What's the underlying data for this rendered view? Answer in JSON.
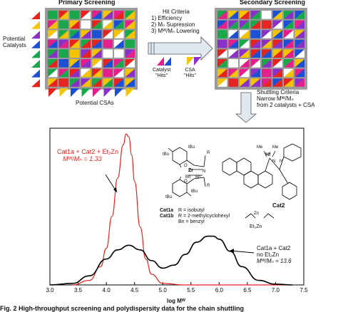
{
  "screening": {
    "primary_title": "Primary Screening",
    "secondary_title": "Secondary Screening",
    "potential_catalysts_label": [
      "Potential",
      "Catalysts"
    ],
    "potential_csas_label": "Potential CSAs",
    "hit_criteria": {
      "title": "Hit Criteria",
      "items": [
        "1) Efficiency",
        "2) Mₙ Supression",
        "3) Mᵂ/Mₙ Lowering"
      ]
    },
    "hits": {
      "catalyst": [
        "Catalyst",
        "\"Hits\""
      ],
      "csa": [
        "CSA",
        "\"Hits\""
      ]
    },
    "shuttling": {
      "title": "Shuttling Criteria",
      "line2": "Narrow Mᵂ/Mₙ",
      "line3": "from 2 catalysts + CSA"
    },
    "palette": [
      "#e8231f",
      "#f5c400",
      "#1a4fd6",
      "#18a84a",
      "#e61e8c",
      "#8b2fc9",
      "#ffffff"
    ]
  },
  "chart_data": {
    "type": "line",
    "xlabel": "log Mᵂ",
    "xlim": [
      3.0,
      7.5
    ],
    "x_ticks": [
      "3.0",
      "3.5",
      "4.0",
      "4.5",
      "5.0",
      "5.5",
      "6.0",
      "6.5",
      "7.0",
      "7.5"
    ],
    "series": [
      {
        "name": "Cat1a + Cat2 + Et₂Zn",
        "color": "#e8231f",
        "x": [
          3.4,
          3.7,
          3.9,
          4.0,
          4.1,
          4.2,
          4.3,
          4.35,
          4.4,
          4.45,
          4.5,
          4.6,
          4.7,
          4.8,
          5.0,
          5.4,
          7.2
        ],
        "y": [
          0.0,
          0.03,
          0.12,
          0.24,
          0.45,
          0.7,
          0.92,
          0.99,
          0.97,
          0.85,
          0.68,
          0.38,
          0.17,
          0.07,
          0.01,
          0.0,
          0.0
        ]
      },
      {
        "name": "Cat1a + Cat2 no Et₂Zn",
        "color": "#000000",
        "x": [
          3.0,
          3.4,
          3.7,
          4.0,
          4.2,
          4.4,
          4.6,
          4.8,
          5.0,
          5.2,
          5.4,
          5.6,
          5.8,
          5.9,
          6.0,
          6.2,
          6.4,
          6.7,
          7.0,
          7.3
        ],
        "y": [
          0.0,
          0.01,
          0.06,
          0.17,
          0.23,
          0.26,
          0.23,
          0.16,
          0.11,
          0.13,
          0.2,
          0.28,
          0.32,
          0.32,
          0.3,
          0.22,
          0.12,
          0.03,
          0.005,
          0.0
        ]
      }
    ],
    "annotations": {
      "red_label_l1": "Cat1a + Cat2 + Et₂Zn",
      "red_label_l2": "Mᵂ/Mₙ = 1.33",
      "black_label_l1": "Cat1a + Cat2",
      "black_label_l2": "no Et₂Zn",
      "black_label_l3": "Mᵂ/Mₙ = 13.6"
    }
  },
  "structures": {
    "tbu": "tBu",
    "zr": "Zr",
    "hf": "Hf",
    "me": "Me",
    "bn": "Bn",
    "n": "N",
    "o": "O",
    "r": "R",
    "cat2_label": "Cat2",
    "et2zn_label": "Et₂Zn",
    "legend": [
      {
        "name": "Cat1a",
        "desc": "R = isobutyl"
      },
      {
        "name": "Cat1b",
        "desc": "R = 2-methylcyclohexyl"
      },
      {
        "name": "",
        "desc": "Bn = benzyl"
      }
    ]
  },
  "caption": "Fig. 2   High-throughput screening and polydispersity data for the chain shuttling"
}
